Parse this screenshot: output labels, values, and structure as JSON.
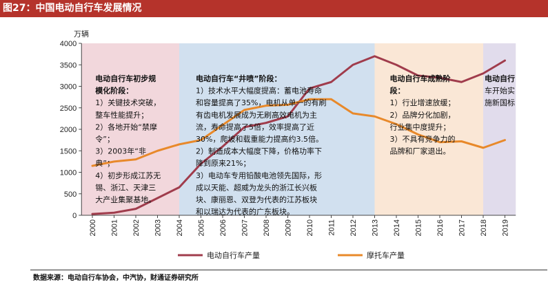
{
  "title": "图27：中国电动自行车发展情况",
  "source": "数据来源：电动自行车协会，中汽协，财通证券研究所",
  "chart_data": {
    "type": "line",
    "yunit": "万辆",
    "ylim": [
      0,
      4000
    ],
    "yticks": [
      0,
      500,
      1000,
      1500,
      2000,
      2500,
      3000,
      3500,
      4000
    ],
    "x": [
      "2000",
      "2001",
      "2002",
      "2003",
      "2004",
      "2005",
      "2006",
      "2007",
      "2008",
      "2009",
      "2010",
      "2011",
      "2012",
      "2013",
      "2014",
      "2015",
      "2016",
      "2017",
      "2018",
      "2019"
    ],
    "series": [
      {
        "name": "电动自行车产量",
        "color": "#a03c4c",
        "values": [
          30,
          60,
          150,
          400,
          650,
          1200,
          1600,
          2050,
          2150,
          2300,
          2950,
          3100,
          3500,
          3700,
          3500,
          3250,
          3200,
          3100,
          3300,
          3600
        ]
      },
      {
        "name": "摩托车产量",
        "color": "#e8892a",
        "values": [
          1150,
          1250,
          1300,
          1500,
          1650,
          1750,
          2100,
          2450,
          2550,
          2570,
          2700,
          2700,
          2370,
          2300,
          2120,
          1880,
          1700,
          1720,
          1570,
          1750
        ]
      }
    ],
    "phases": [
      {
        "from": "2000",
        "to": "2004",
        "color": "#f2d7dc",
        "lines": [
          "电动自行车初步规",
          "模化阶段：",
          "1）关键技术突破，",
          "整车性能提升；",
          "2）各地开始“禁摩",
          "令”；",
          "3）2003年“非",
          "典”；",
          "4）初步形成江苏无",
          "锡、浙江、天津三",
          "大产业集聚基地。"
        ]
      },
      {
        "from": "2004",
        "to": "2013",
        "color": "#d1e0ef",
        "lines": [
          "电动自行车“井喷”阶段：",
          "1）技术水平大幅度提高：蓄电池寿命",
          "和容量提高了35%，电机从单一的有刷",
          "有齿电机发展成为无刷高效电机为主",
          "流，寿命提高了5倍，效率提高了近",
          "30%，爬坡和载重能力提高约3.5倍。",
          "2）制造成本大幅度下降，价格功率下",
          "降到原来21%；",
          "3）电动车专用铅酸电池领先国际，形",
          "成以天能、超威为龙头的浙江长兴板",
          "块、康丽恩、双登为代表的江苏板块",
          "和以瑞达为代表的广东板块。"
        ]
      },
      {
        "from": "2013",
        "to": "2018",
        "color": "#fae7d6",
        "lines": [
          "电动自行车成熟阶",
          "段：",
          "1）行业增速放缓；",
          "2）品牌分化加剧，",
          "行业集中度提升；",
          "3）不具有竞争力的",
          "品牌和厂家退出。"
        ]
      },
      {
        "from": "2018",
        "to": "2019",
        "color": "#e1dcec",
        "lines": [
          "电动自行",
          "车开始实",
          "施新国标"
        ]
      }
    ]
  }
}
